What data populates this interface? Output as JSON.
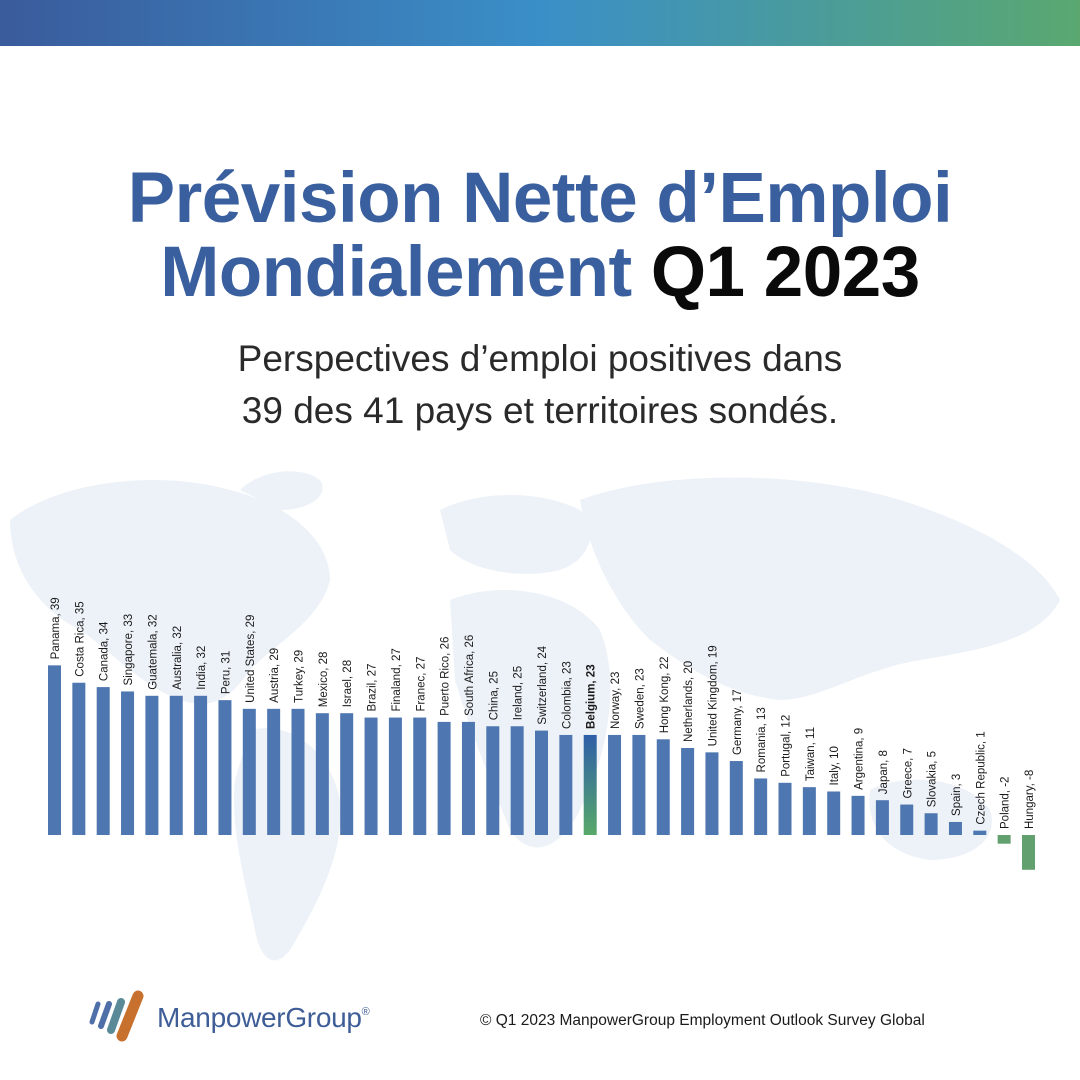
{
  "title": {
    "line1": "Prévision Nette d’Emploi",
    "line2_blue": "Mondialement",
    "line2_black": "Q1 2023"
  },
  "subtitle": {
    "line1": "Perspectives d’emploi positives dans",
    "line2": "39 des 41 pays et territoires sondés."
  },
  "colors": {
    "bar": "#4e76b0",
    "negative_bar": "#63a070",
    "highlight_top": "#2e5ea8",
    "highlight_bottom": "#58a86a",
    "title_blue": "#3a5f9f"
  },
  "chart_data": {
    "type": "bar",
    "highlight": "Belgium",
    "categories": [
      "Panama",
      "Costa Rica",
      "Canada",
      "Singapore",
      "Guatemala",
      "Australia",
      "India",
      "Peru",
      "United States",
      "Austria",
      "Turkey",
      "Mexico",
      "Israel",
      "Brazil",
      "Finaland",
      "Franec",
      "Puerto Rico",
      "South Africa",
      "China",
      "Ireland",
      "Switzerland",
      "Colombia",
      "Belgium",
      "Norway",
      "Sweden",
      "Hong Kong",
      "Netherlands",
      "United Kingdom",
      "Germany",
      "Romania",
      "Portugal",
      "Taiwan",
      "Italy",
      "Argentina",
      "Japan",
      "Greece",
      "Slovakia",
      "Spain",
      "Czech Republic",
      "Poland",
      "Hungary"
    ],
    "values": [
      39,
      35,
      34,
      33,
      32,
      32,
      32,
      31,
      29,
      29,
      29,
      28,
      28,
      27,
      27,
      27,
      26,
      26,
      25,
      25,
      24,
      23,
      23,
      23,
      23,
      22,
      20,
      19,
      17,
      13,
      12,
      11,
      10,
      9,
      8,
      7,
      5,
      3,
      1,
      -2,
      -8
    ]
  },
  "logo": {
    "name": "ManpowerGroup",
    "mark": "®"
  },
  "source": "© Q1 2023 ManpowerGroup Employment Outlook Survey Global"
}
